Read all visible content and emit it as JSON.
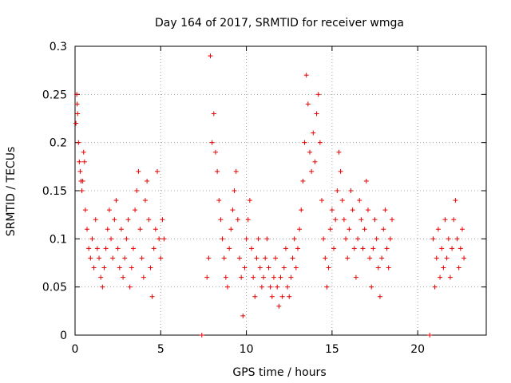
{
  "chart_data": {
    "type": "scatter",
    "title": "Day 164 of 2017, SRMTID for receiver wmga",
    "xlabel": "GPS time / hours",
    "ylabel": "SRMTID / TECUs",
    "xlim": [
      0,
      24
    ],
    "ylim": [
      0,
      0.3
    ],
    "xticks": [
      0,
      5,
      10,
      15,
      20
    ],
    "xtick_labels": [
      "0",
      "5",
      "10",
      "15",
      "20"
    ],
    "yticks": [
      0,
      0.05,
      0.1,
      0.15,
      0.2,
      0.25,
      0.3
    ],
    "ytick_labels": [
      "0",
      "0.05",
      "0.1",
      "0.15",
      "0.2",
      "0.25",
      "0.3"
    ],
    "grid": true,
    "marker": "plus",
    "color": "#e60000",
    "series": [
      {
        "name": "SRMTID",
        "segments": [
          {
            "x_range": [
              0.0,
              5.25
            ],
            "description_values": "dense cluster"
          },
          {
            "x_range": [
              7.6,
              18.55
            ],
            "description_values": "dense cluster"
          },
          {
            "x_range": [
              20.8,
              22.8
            ],
            "description_values": "dense cluster"
          }
        ],
        "points": [
          [
            0.05,
            0.22
          ],
          [
            0.1,
            0.25
          ],
          [
            0.12,
            0.24
          ],
          [
            0.15,
            0.23
          ],
          [
            0.2,
            0.2
          ],
          [
            0.25,
            0.18
          ],
          [
            0.3,
            0.17
          ],
          [
            0.35,
            0.16
          ],
          [
            0.4,
            0.15
          ],
          [
            0.45,
            0.16
          ],
          [
            0.5,
            0.19
          ],
          [
            0.55,
            0.18
          ],
          [
            0.6,
            0.13
          ],
          [
            0.7,
            0.11
          ],
          [
            0.8,
            0.09
          ],
          [
            0.9,
            0.08
          ],
          [
            1.0,
            0.1
          ],
          [
            1.1,
            0.07
          ],
          [
            1.2,
            0.12
          ],
          [
            1.3,
            0.09
          ],
          [
            1.4,
            0.08
          ],
          [
            1.5,
            0.06
          ],
          [
            1.6,
            0.05
          ],
          [
            1.7,
            0.07
          ],
          [
            1.8,
            0.09
          ],
          [
            1.9,
            0.11
          ],
          [
            2.0,
            0.13
          ],
          [
            2.1,
            0.1
          ],
          [
            2.2,
            0.08
          ],
          [
            2.3,
            0.12
          ],
          [
            2.4,
            0.14
          ],
          [
            2.5,
            0.09
          ],
          [
            2.6,
            0.07
          ],
          [
            2.7,
            0.11
          ],
          [
            2.8,
            0.06
          ],
          [
            2.9,
            0.08
          ],
          [
            3.0,
            0.1
          ],
          [
            3.1,
            0.12
          ],
          [
            3.2,
            0.05
          ],
          [
            3.3,
            0.07
          ],
          [
            3.4,
            0.09
          ],
          [
            3.5,
            0.13
          ],
          [
            3.6,
            0.15
          ],
          [
            3.7,
            0.17
          ],
          [
            3.8,
            0.11
          ],
          [
            3.9,
            0.08
          ],
          [
            4.0,
            0.06
          ],
          [
            4.1,
            0.14
          ],
          [
            4.2,
            0.16
          ],
          [
            4.3,
            0.12
          ],
          [
            4.4,
            0.07
          ],
          [
            4.5,
            0.04
          ],
          [
            4.6,
            0.09
          ],
          [
            4.7,
            0.11
          ],
          [
            4.8,
            0.17
          ],
          [
            4.9,
            0.1
          ],
          [
            5.0,
            0.08
          ],
          [
            5.1,
            0.12
          ],
          [
            5.2,
            0.1
          ],
          [
            7.4,
            0.0
          ],
          [
            7.7,
            0.06
          ],
          [
            7.8,
            0.08
          ],
          [
            7.9,
            0.29
          ],
          [
            8.0,
            0.2
          ],
          [
            8.1,
            0.23
          ],
          [
            8.2,
            0.19
          ],
          [
            8.3,
            0.17
          ],
          [
            8.4,
            0.14
          ],
          [
            8.5,
            0.12
          ],
          [
            8.6,
            0.1
          ],
          [
            8.7,
            0.08
          ],
          [
            8.8,
            0.06
          ],
          [
            8.9,
            0.05
          ],
          [
            9.0,
            0.09
          ],
          [
            9.1,
            0.11
          ],
          [
            9.2,
            0.13
          ],
          [
            9.3,
            0.15
          ],
          [
            9.4,
            0.17
          ],
          [
            9.5,
            0.12
          ],
          [
            9.6,
            0.08
          ],
          [
            9.7,
            0.06
          ],
          [
            9.8,
            0.02
          ],
          [
            9.9,
            0.07
          ],
          [
            10.0,
            0.1
          ],
          [
            10.1,
            0.12
          ],
          [
            10.2,
            0.14
          ],
          [
            10.3,
            0.09
          ],
          [
            10.4,
            0.06
          ],
          [
            10.5,
            0.04
          ],
          [
            10.6,
            0.08
          ],
          [
            10.7,
            0.1
          ],
          [
            10.8,
            0.07
          ],
          [
            10.9,
            0.05
          ],
          [
            11.0,
            0.06
          ],
          [
            11.1,
            0.08
          ],
          [
            11.2,
            0.1
          ],
          [
            11.3,
            0.07
          ],
          [
            11.4,
            0.05
          ],
          [
            11.5,
            0.04
          ],
          [
            11.6,
            0.06
          ],
          [
            11.7,
            0.08
          ],
          [
            11.8,
            0.05
          ],
          [
            11.9,
            0.03
          ],
          [
            12.0,
            0.06
          ],
          [
            12.1,
            0.04
          ],
          [
            12.2,
            0.07
          ],
          [
            12.3,
            0.09
          ],
          [
            12.4,
            0.05
          ],
          [
            12.5,
            0.04
          ],
          [
            12.6,
            0.06
          ],
          [
            12.7,
            0.08
          ],
          [
            12.8,
            0.1
          ],
          [
            12.9,
            0.07
          ],
          [
            13.0,
            0.09
          ],
          [
            13.1,
            0.11
          ],
          [
            13.2,
            0.13
          ],
          [
            13.3,
            0.16
          ],
          [
            13.4,
            0.2
          ],
          [
            13.5,
            0.27
          ],
          [
            13.6,
            0.24
          ],
          [
            13.7,
            0.19
          ],
          [
            13.8,
            0.17
          ],
          [
            13.9,
            0.21
          ],
          [
            14.0,
            0.18
          ],
          [
            14.1,
            0.23
          ],
          [
            14.2,
            0.25
          ],
          [
            14.3,
            0.2
          ],
          [
            14.4,
            0.14
          ],
          [
            14.5,
            0.1
          ],
          [
            14.6,
            0.08
          ],
          [
            14.7,
            0.05
          ],
          [
            14.8,
            0.07
          ],
          [
            14.9,
            0.11
          ],
          [
            15.0,
            0.13
          ],
          [
            15.1,
            0.09
          ],
          [
            15.2,
            0.12
          ],
          [
            15.3,
            0.15
          ],
          [
            15.4,
            0.19
          ],
          [
            15.5,
            0.17
          ],
          [
            15.6,
            0.14
          ],
          [
            15.7,
            0.12
          ],
          [
            15.8,
            0.1
          ],
          [
            15.9,
            0.08
          ],
          [
            16.0,
            0.11
          ],
          [
            16.1,
            0.15
          ],
          [
            16.2,
            0.13
          ],
          [
            16.3,
            0.09
          ],
          [
            16.4,
            0.06
          ],
          [
            16.5,
            0.1
          ],
          [
            16.6,
            0.14
          ],
          [
            16.7,
            0.12
          ],
          [
            16.8,
            0.09
          ],
          [
            16.9,
            0.11
          ],
          [
            17.0,
            0.16
          ],
          [
            17.1,
            0.13
          ],
          [
            17.2,
            0.08
          ],
          [
            17.3,
            0.05
          ],
          [
            17.4,
            0.09
          ],
          [
            17.5,
            0.12
          ],
          [
            17.6,
            0.1
          ],
          [
            17.7,
            0.07
          ],
          [
            17.8,
            0.04
          ],
          [
            17.9,
            0.08
          ],
          [
            18.0,
            0.11
          ],
          [
            18.1,
            0.13
          ],
          [
            18.2,
            0.09
          ],
          [
            18.3,
            0.07
          ],
          [
            18.4,
            0.1
          ],
          [
            18.5,
            0.12
          ],
          [
            20.7,
            0.0
          ],
          [
            20.9,
            0.1
          ],
          [
            21.0,
            0.05
          ],
          [
            21.1,
            0.08
          ],
          [
            21.2,
            0.11
          ],
          [
            21.3,
            0.06
          ],
          [
            21.4,
            0.09
          ],
          [
            21.5,
            0.07
          ],
          [
            21.6,
            0.12
          ],
          [
            21.7,
            0.08
          ],
          [
            21.8,
            0.1
          ],
          [
            21.9,
            0.06
          ],
          [
            22.0,
            0.09
          ],
          [
            22.1,
            0.12
          ],
          [
            22.2,
            0.14
          ],
          [
            22.3,
            0.1
          ],
          [
            22.4,
            0.07
          ],
          [
            22.5,
            0.09
          ],
          [
            22.6,
            0.11
          ],
          [
            22.7,
            0.08
          ]
        ]
      }
    ]
  }
}
